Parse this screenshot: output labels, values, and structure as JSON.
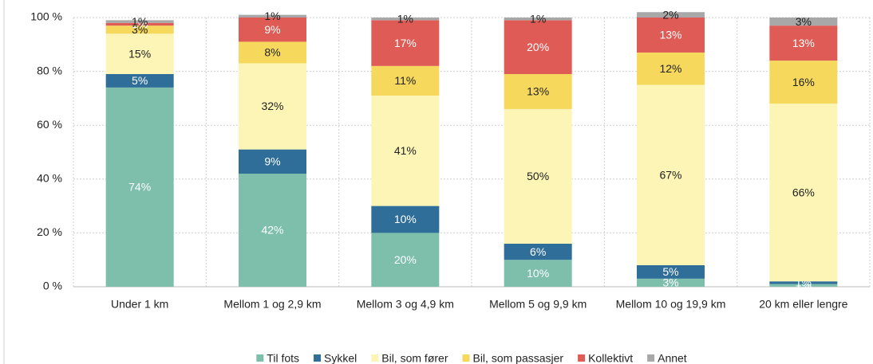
{
  "chart_data": {
    "type": "stacked_bar",
    "categories": [
      "Under 1 km",
      "Mellom 1 og 2,9 km",
      "Mellom 3 og 4,9 km",
      "Mellom 5 og 9,9 km",
      "Mellom 10 og 19,9 km",
      "20 km eller lengre"
    ],
    "series": [
      {
        "name": "Til fots",
        "color": "#7dbfaa",
        "label_color": "#ffffff",
        "values": [
          74,
          42,
          20,
          10,
          3,
          1
        ],
        "value_labels": [
          "74%",
          "42%",
          "20%",
          "10%",
          "3%",
          "1%"
        ]
      },
      {
        "name": "Sykkel",
        "color": "#2f6e98",
        "label_color": "#ffffff",
        "values": [
          5,
          9,
          10,
          6,
          5,
          1
        ],
        "value_labels": [
          "5%",
          "9%",
          "10%",
          "6%",
          "5%",
          "1%"
        ]
      },
      {
        "name": "Bil, som fører",
        "color": "#fcf5b5",
        "label_color": "#222222",
        "values": [
          15,
          32,
          41,
          50,
          67,
          66
        ],
        "value_labels": [
          "15%",
          "32%",
          "41%",
          "50%",
          "67%",
          "66%"
        ]
      },
      {
        "name": "Bil, som passasjer",
        "color": "#f5d85c",
        "label_color": "#222222",
        "values": [
          3,
          8,
          11,
          13,
          12,
          16
        ],
        "value_labels": [
          "3%",
          "8%",
          "11%",
          "13%",
          "12%",
          "16%"
        ]
      },
      {
        "name": "Kollektivt",
        "color": "#df5b55",
        "label_color": "#ffffff",
        "values": [
          1,
          9,
          17,
          20,
          13,
          13
        ],
        "value_labels": [
          "1%",
          "9%",
          "17%",
          "20%",
          "13%",
          "13%"
        ]
      },
      {
        "name": "Annet",
        "color": "#a8a8a8",
        "label_color": "#222222",
        "values": [
          1,
          1,
          1,
          1,
          2,
          3
        ],
        "value_labels": [
          "1%",
          "1%",
          "1%",
          "1%",
          "2%",
          "3%"
        ]
      }
    ],
    "ylim": [
      0,
      100
    ],
    "yticks": [
      {
        "value": 0,
        "label": "0 %"
      },
      {
        "value": 20,
        "label": "20 %"
      },
      {
        "value": 40,
        "label": "40 %"
      },
      {
        "value": 60,
        "label": "60 %"
      },
      {
        "value": 80,
        "label": "80 %"
      },
      {
        "value": 100,
        "label": "100 %"
      }
    ],
    "grid": true,
    "legend": "bottom"
  }
}
